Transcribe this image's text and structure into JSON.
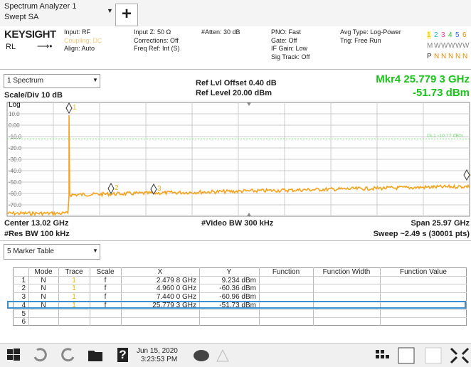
{
  "app": {
    "title": "Spectrum Analyzer 1",
    "mode": "Swept SA",
    "add_button": "+"
  },
  "settings": {
    "brand": "KEYSIGHT",
    "ref_label": "RL",
    "col1": [
      "Input: RF",
      "Coupling: DC",
      "Align: Auto"
    ],
    "col2": [
      "Input Z: 50 Ω",
      "Corrections: Off",
      "Freq Ref: Int (S)"
    ],
    "col3": [
      "#Atten: 30 dB"
    ],
    "col4": [
      "PNO: Fast",
      "Gate: Off",
      "IF Gain: Low",
      "Sig Track: Off"
    ],
    "col5": [
      "Avg Type: Log-Power",
      "Trig: Free Run"
    ],
    "traces": {
      "numbers": [
        "1",
        "2",
        "3",
        "4",
        "5",
        "6"
      ],
      "types": [
        "M",
        "W",
        "W",
        "W",
        "W",
        "W"
      ],
      "detectors": [
        "P",
        "N",
        "N",
        "N",
        "N",
        "N"
      ]
    }
  },
  "view": {
    "window": "1 Spectrum",
    "ref_offset": "Ref Lvl Offset 0.40 dB",
    "ref_level": "Ref Level 20.00 dBm",
    "marker_readout": "Mkr4  25.779 3 GHz",
    "marker_value": "-51.73 dBm",
    "scale": "Scale/Div 10 dB",
    "log": "Log",
    "y_labels": [
      "10.0",
      "0.00",
      "-10.0",
      "-20.0",
      "-30.0",
      "-40.0",
      "-50.0",
      "-60.0",
      "-70.0"
    ],
    "display_line": "DL1 -10.77 dBm",
    "marker_labels": [
      "1",
      "2",
      "3",
      "4"
    ],
    "center": "Center 13.02 GHz",
    "res_bw": "#Res BW 100 kHz",
    "video_bw": "#Video BW 300 kHz",
    "span": "Span 25.97 GHz",
    "sweep": "Sweep ~2.49 s (30001 pts)"
  },
  "marker_table": {
    "window": "5 Marker Table",
    "headers": [
      "Mode",
      "Trace",
      "Scale",
      "X",
      "Y",
      "Function",
      "Function Width",
      "Function Value"
    ],
    "rows": [
      [
        "1",
        "N",
        "1",
        "f",
        "2.479 8 GHz",
        "9.234 dBm"
      ],
      [
        "2",
        "N",
        "1",
        "f",
        "4.960 0 GHz",
        "-60.36 dBm"
      ],
      [
        "3",
        "N",
        "1",
        "f",
        "7.440 0 GHz",
        "-60.96 dBm"
      ],
      [
        "4",
        "N",
        "1",
        "f",
        "25.779 3 GHz",
        "-51.73 dBm"
      ],
      [
        "5"
      ],
      [
        "6"
      ]
    ]
  },
  "taskbar": {
    "help": "?",
    "date": "Jun 15, 2020",
    "time": "3:23:53 PM"
  }
}
